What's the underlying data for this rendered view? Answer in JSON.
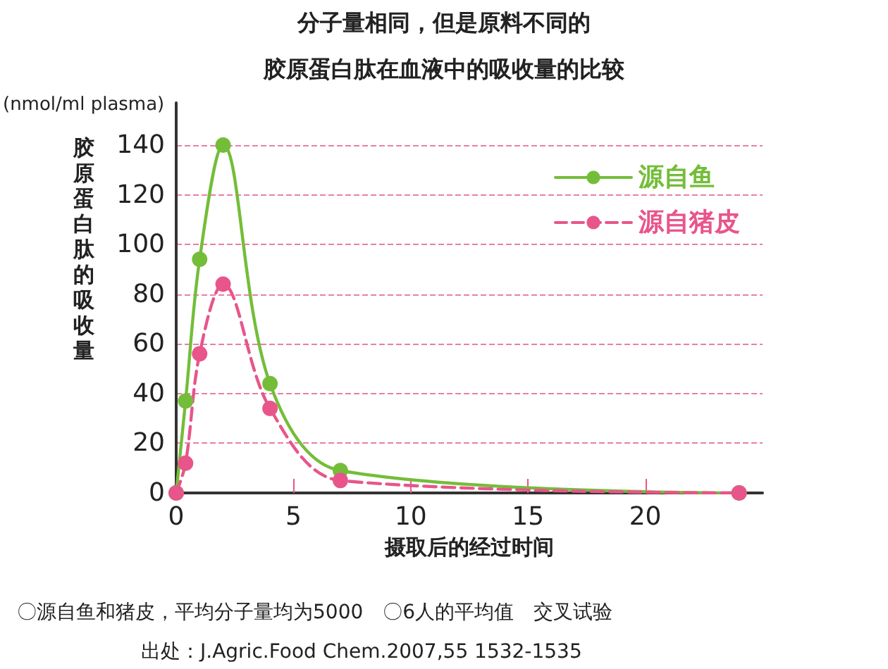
{
  "chart_data": {
    "type": "line",
    "title": "分子量相同，但是原料不同的",
    "subtitle": "胶原蛋白肽在血液中的吸收量的比较",
    "xlabel": "摄取后的经过时间",
    "ylabel": "胶原蛋白肽的吸收量",
    "annotations": [
      "(nmol/ml plasma)",
      "〇源自鱼和猪皮，平均分子量均为5000　〇6人的平均值　交叉试验",
      "出处：J.Agric.Food Chem.2007,55 1532-1535"
    ],
    "x": [
      0,
      0.4,
      1,
      2,
      4,
      7,
      24
    ],
    "series": [
      {
        "name": "源自鱼",
        "color": "#74bd39",
        "values": [
          0,
          37,
          94,
          140,
          44,
          9,
          0
        ],
        "line_style": "solid"
      },
      {
        "name": "源自猪皮",
        "color": "#e8558a",
        "values": [
          0,
          12,
          56,
          84,
          34,
          5,
          0
        ],
        "line_style": "dashed"
      }
    ],
    "xlim": [
      0,
      25
    ],
    "xticks": [
      0,
      5,
      10,
      15,
      20
    ],
    "ylim": [
      0,
      157
    ],
    "yticks": [
      0,
      20,
      40,
      60,
      80,
      100,
      120,
      140
    ],
    "grid": "y",
    "legend": "top right",
    "marker": "circle"
  }
}
